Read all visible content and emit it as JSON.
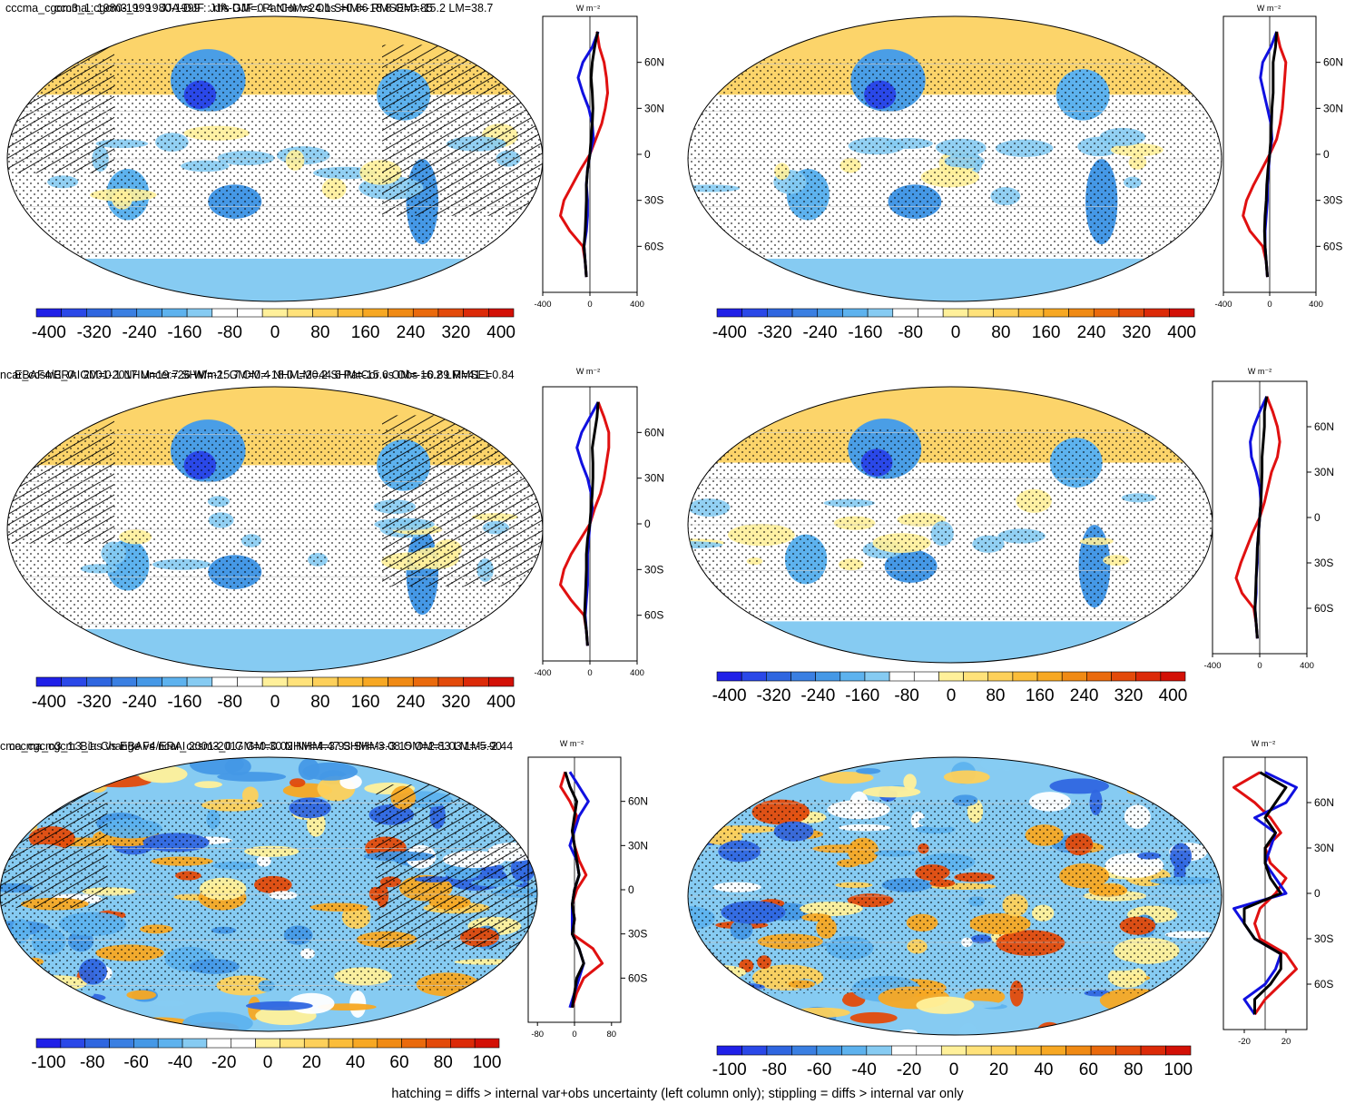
{
  "colors": {
    "blue_dark": "#1f1fe6",
    "blue_mid": "#3e8fe0",
    "blue_light": "#7cc4ec",
    "yellow": "#ffe27a",
    "orange": "#f5a623",
    "red": "#e2231a",
    "zonal_model": "#e01010",
    "zonal_obs": "#1010e0",
    "zonal_other": "#000000"
  },
  "colorbar_palette": [
    "#2020e8",
    "#2a48e8",
    "#2f66e0",
    "#3a7fe2",
    "#4598e6",
    "#5db2ee",
    "#86cbf2",
    "#ffffff",
    "#ffffff",
    "#fff09a",
    "#ffe27a",
    "#fdd05a",
    "#fbbd3a",
    "#f7a823",
    "#f08a14",
    "#ea6a0c",
    "#e34a0a",
    "#dc2a08",
    "#d31006"
  ],
  "footnote": "hatching = diffs > internal var+obs uncertainty (left column only); stippling = diffs > internal var only",
  "panels": [
    {
      "id": "a",
      "title": "cccma_cgcm3_1: 1980-1999 : JJA-DJF : rtfs GM=0.4 NHM=24.1 SHM=-18.8 OM=-15.2 LM=38.7",
      "unit": "W m⁻²",
      "colorbar_ticks": [
        "-400",
        "-320",
        "-240",
        "-160",
        "-80",
        "0",
        "80",
        "160",
        "240",
        "320",
        "400"
      ],
      "zonal_xticks": [
        "-400",
        "0",
        "400"
      ],
      "lat_ticks": [
        "60N",
        "30N",
        "0",
        "30S",
        "60S"
      ]
    },
    {
      "id": "b",
      "title": "cccma_cgcm3_1: 1980-1999 : JJA-DJF : PatCor vs Obs =0.86 RMSE=0.85",
      "unit": "W m⁻²",
      "colorbar_ticks": [
        "-400",
        "-320",
        "-240",
        "-160",
        "-80",
        "0",
        "80",
        "160",
        "240",
        "320",
        "400"
      ],
      "zonal_xticks": [
        "-400",
        "0",
        "400"
      ],
      "lat_ticks": [
        "60N",
        "30N",
        "0",
        "30S",
        "60S"
      ]
    },
    {
      "id": "c",
      "title": "EBAF4/ERAI 2001-2017 Uncer=26 W/m2: GM=0.4 NHM=20.2 SHM=-15.6 OM=-16.2 LM=41.1",
      "unit": "W m⁻²",
      "colorbar_ticks": [
        "-400",
        "-320",
        "-240",
        "-160",
        "-80",
        "0",
        "80",
        "160",
        "240",
        "320",
        "400"
      ],
      "zonal_xticks": [
        "-400",
        "0",
        "400"
      ],
      "lat_ticks": [
        "60N",
        "30N",
        "0",
        "30S",
        "60S"
      ]
    },
    {
      "id": "d",
      "title": "ncar_ccsm3_0: GM=0.1 NHM=19.7 SHM=-15.7 OM=-18.0 LM=44.6 PatCor vs Obs =0.89 RMSE=0.84",
      "unit": "W m⁻²",
      "colorbar_ticks": [
        "-400",
        "-320",
        "-240",
        "-160",
        "-80",
        "0",
        "80",
        "160",
        "240",
        "320",
        "400"
      ],
      "zonal_xticks": [
        "-400",
        "0",
        "400"
      ],
      "lat_ticks": [
        "60N",
        "30N",
        "0",
        "30S",
        "60S"
      ]
    },
    {
      "id": "e",
      "title": "cma_cgcm3_1: Bias vs EBAF4/ERAI 2001-2017 GM=0.02 NHM=3.93 SHM=-3.15 OM=1.03 LM=-2.44",
      "unit": "W m⁻²",
      "colorbar_ticks": [
        "-100",
        "-80",
        "-60",
        "-40",
        "-20",
        "0",
        "20",
        "40",
        "60",
        "80",
        "100"
      ],
      "zonal_xticks": [
        "-80",
        "0",
        "80"
      ],
      "lat_ticks": [
        "60N",
        "30N",
        "0",
        "30S",
        "60S"
      ]
    },
    {
      "id": "f",
      "title": "cccma_cgcm3_1: Change vs ncar_ccsm3_0 GM=0.30 NHM=4.47 SHM=-3.08 OM=2.83 LM=-5.90",
      "unit": "W m⁻²",
      "colorbar_ticks": [
        "-100",
        "-80",
        "-60",
        "-40",
        "-20",
        "0",
        "20",
        "40",
        "60",
        "80",
        "100"
      ],
      "zonal_xticks": [
        "-20",
        "20"
      ],
      "lat_ticks": [
        "60N",
        "30N",
        "0",
        "30S",
        "60S"
      ]
    }
  ],
  "chart_data": [
    {
      "type": "heatmap",
      "title": "cccma_cgcm3_1: 1980-1999 : JJA-DJF : rtfs GM=0.4 NHM=24.1 SHM=-18.8 OM=-15.2 LM=38.7",
      "colorbar_range": [
        -400,
        400
      ],
      "colorbar_ticks": [
        -400,
        -320,
        -240,
        -160,
        -80,
        0,
        80,
        160,
        240,
        320,
        400
      ],
      "zonal_mean": {
        "xlim": [
          -400,
          400
        ],
        "ylabel_ticks": [
          "60N",
          "30N",
          "0",
          "30S",
          "60S"
        ],
        "lat": [
          80,
          70,
          60,
          50,
          40,
          30,
          20,
          10,
          0,
          -10,
          -20,
          -30,
          -40,
          -50,
          -60,
          -70,
          -80
        ],
        "series": [
          {
            "name": "model",
            "color": "red",
            "values": [
              60,
              80,
              120,
              140,
              150,
              130,
              100,
              50,
              0,
              -80,
              -150,
              -220,
              -250,
              -170,
              -60,
              -40,
              -30
            ]
          },
          {
            "name": "obs",
            "color": "blue",
            "values": [
              70,
              20,
              -60,
              -100,
              -60,
              -10,
              20,
              30,
              0,
              -20,
              -30,
              -20,
              -20,
              -30,
              -50,
              -40,
              -30
            ]
          },
          {
            "name": "other",
            "color": "black",
            "values": [
              65,
              40,
              20,
              10,
              20,
              25,
              20,
              10,
              0,
              -20,
              -30,
              -30,
              -35,
              -40,
              -50,
              -40,
              -30
            ]
          }
        ]
      }
    },
    {
      "type": "heatmap",
      "title": "cccma_cgcm3_1: 1980-1999 : JJA-DJF : PatCor vs Obs =0.86 RMSE=0.85",
      "colorbar_range": [
        -400,
        400
      ],
      "colorbar_ticks": [
        -400,
        -320,
        -240,
        -160,
        -80,
        0,
        80,
        160,
        240,
        320,
        400
      ],
      "zonal_mean": {
        "xlim": [
          -400,
          400
        ],
        "lat": [
          80,
          70,
          60,
          50,
          40,
          30,
          20,
          10,
          0,
          -10,
          -20,
          -30,
          -40,
          -50,
          -60,
          -70,
          -80
        ],
        "series": [
          {
            "name": "model",
            "color": "red",
            "values": [
              60,
              90,
              140,
              130,
              120,
              110,
              90,
              60,
              0,
              -70,
              -140,
              -200,
              -230,
              -170,
              -60,
              -30,
              -20
            ]
          },
          {
            "name": "obs",
            "color": "blue",
            "values": [
              60,
              10,
              -60,
              -80,
              -50,
              -20,
              10,
              20,
              0,
              -10,
              -20,
              -20,
              -30,
              -40,
              -40,
              -30,
              -20
            ]
          },
          {
            "name": "other",
            "color": "black",
            "values": [
              60,
              50,
              30,
              30,
              30,
              20,
              15,
              10,
              0,
              -15,
              -25,
              -30,
              -40,
              -45,
              -40,
              -30,
              -20
            ]
          }
        ]
      }
    },
    {
      "type": "heatmap",
      "title": "EBAF4/ERAI 2001-2017 Uncer=26 W/m2: GM=0.4 NHM=20.2 SHM=-15.6 OM=-16.2 LM=41.1",
      "colorbar_range": [
        -400,
        400
      ],
      "colorbar_ticks": [
        -400,
        -320,
        -240,
        -160,
        -80,
        0,
        80,
        160,
        240,
        320,
        400
      ],
      "zonal_mean": {
        "xlim": [
          -400,
          400
        ],
        "lat": [
          80,
          70,
          60,
          50,
          40,
          30,
          20,
          10,
          0,
          -10,
          -20,
          -30,
          -40,
          -50,
          -60,
          -70,
          -80
        ],
        "series": [
          {
            "name": "model",
            "color": "red",
            "values": [
              70,
              120,
              160,
              160,
              140,
              120,
              90,
              40,
              0,
              -80,
              -160,
              -220,
              -250,
              -160,
              -50,
              -30,
              -20
            ]
          },
          {
            "name": "obs",
            "color": "blue",
            "values": [
              70,
              0,
              -70,
              -110,
              -70,
              -20,
              10,
              20,
              0,
              -10,
              -20,
              -20,
              -20,
              -30,
              -40,
              -30,
              -20
            ]
          },
          {
            "name": "other",
            "color": "black",
            "values": [
              70,
              60,
              40,
              20,
              25,
              25,
              20,
              10,
              0,
              -20,
              -30,
              -30,
              -35,
              -40,
              -45,
              -30,
              -20
            ]
          }
        ]
      }
    },
    {
      "type": "heatmap",
      "title": "ncar_ccsm3_0: GM=0.1 NHM=19.7 SHM=-15.7 OM=-18.0 LM=44.6 PatCor vs Obs =0.89 RMSE=0.84",
      "colorbar_range": [
        -400,
        400
      ],
      "colorbar_ticks": [
        -400,
        -320,
        -240,
        -160,
        -80,
        0,
        80,
        160,
        240,
        320,
        400
      ],
      "zonal_mean": {
        "xlim": [
          -400,
          400
        ],
        "lat": [
          80,
          70,
          60,
          50,
          40,
          30,
          20,
          10,
          0,
          -10,
          -20,
          -30,
          -40,
          -50,
          -60,
          -70,
          -80
        ],
        "series": [
          {
            "name": "model",
            "color": "red",
            "values": [
              60,
              110,
              150,
              170,
              150,
              100,
              70,
              40,
              0,
              -60,
              -110,
              -160,
              -200,
              -150,
              -50,
              -30,
              -20
            ]
          },
          {
            "name": "obs",
            "color": "blue",
            "values": [
              60,
              0,
              -50,
              -80,
              -70,
              -30,
              0,
              10,
              0,
              -10,
              -20,
              -20,
              -30,
              -30,
              -40,
              -30,
              -20
            ]
          },
          {
            "name": "other",
            "color": "black",
            "values": [
              60,
              40,
              40,
              30,
              20,
              20,
              15,
              10,
              0,
              -10,
              -20,
              -25,
              -30,
              -35,
              -40,
              -30,
              -20
            ]
          }
        ]
      }
    },
    {
      "type": "heatmap",
      "title": "cma_cgcm3_1: Bias vs EBAF4/ERAI 2001-2017 GM=0.02 NHM=3.93 SHM=-3.15 OM=1.03 LM=-2.44",
      "colorbar_range": [
        -100,
        100
      ],
      "colorbar_ticks": [
        -100,
        -80,
        -60,
        -40,
        -20,
        0,
        20,
        40,
        60,
        80,
        100
      ],
      "zonal_mean": {
        "xlim": [
          -100,
          100
        ],
        "lat": [
          80,
          70,
          60,
          50,
          40,
          30,
          20,
          10,
          0,
          -10,
          -20,
          -30,
          -40,
          -50,
          -60,
          -70,
          -80
        ],
        "series": [
          {
            "name": "model",
            "color": "red",
            "values": [
              -20,
              -30,
              -10,
              5,
              -5,
              0,
              10,
              25,
              5,
              -5,
              0,
              -5,
              40,
              60,
              20,
              5,
              -5
            ]
          },
          {
            "name": "obs",
            "color": "blue",
            "values": [
              -10,
              10,
              30,
              10,
              0,
              -10,
              5,
              10,
              0,
              -5,
              -5,
              -5,
              10,
              20,
              10,
              0,
              -10
            ]
          },
          {
            "name": "other",
            "color": "black",
            "values": [
              -20,
              -10,
              5,
              0,
              -5,
              0,
              5,
              10,
              0,
              -5,
              0,
              -5,
              10,
              20,
              5,
              0,
              -5
            ]
          }
        ]
      }
    },
    {
      "type": "heatmap",
      "title": "cccma_cgcm3_1: Change vs ncar_ccsm3_0 GM=0.30 NHM=4.47 SHM=-3.08 OM=2.83 LM=-5.90",
      "colorbar_range": [
        -100,
        100
      ],
      "colorbar_ticks": [
        -100,
        -80,
        -60,
        -40,
        -20,
        0,
        20,
        40,
        60,
        80,
        100
      ],
      "zonal_mean": {
        "xlim": [
          -40,
          40
        ],
        "lat": [
          80,
          70,
          60,
          50,
          40,
          30,
          20,
          10,
          0,
          -10,
          -20,
          -30,
          -40,
          -50,
          -60,
          -70,
          -80
        ],
        "series": [
          {
            "name": "model",
            "color": "red",
            "values": [
              -5,
              -30,
              -10,
              5,
              15,
              0,
              5,
              20,
              10,
              -5,
              -10,
              -5,
              20,
              30,
              15,
              0,
              -10
            ]
          },
          {
            "name": "obs",
            "color": "blue",
            "values": [
              0,
              30,
              20,
              -10,
              10,
              5,
              0,
              10,
              20,
              -30,
              -20,
              -10,
              15,
              10,
              0,
              -20,
              -10
            ]
          },
          {
            "name": "other",
            "color": "black",
            "values": [
              -5,
              20,
              10,
              0,
              10,
              0,
              0,
              5,
              15,
              -20,
              -20,
              -10,
              15,
              15,
              5,
              -10,
              -10
            ]
          }
        ]
      }
    }
  ]
}
